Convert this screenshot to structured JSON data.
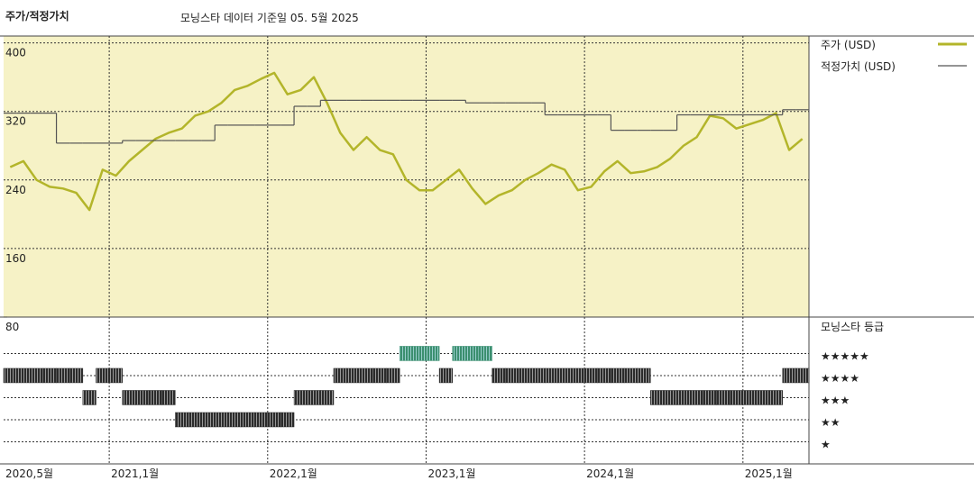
{
  "chart_data": {
    "type": "line",
    "title": "주가/적정가치",
    "subtitle": "모닝스타 데이터 기준일 05. 5월 2025",
    "x": [
      "2020-05",
      "2020-06",
      "2020-07",
      "2020-08",
      "2020-09",
      "2020-10",
      "2020-11",
      "2020-12",
      "2021-01",
      "2021-02",
      "2021-03",
      "2021-04",
      "2021-05",
      "2021-06",
      "2021-07",
      "2021-08",
      "2021-09",
      "2021-10",
      "2021-11",
      "2021-12",
      "2022-01",
      "2022-02",
      "2022-03",
      "2022-04",
      "2022-05",
      "2022-06",
      "2022-07",
      "2022-08",
      "2022-09",
      "2022-10",
      "2022-11",
      "2022-12",
      "2023-01",
      "2023-02",
      "2023-03",
      "2023-04",
      "2023-05",
      "2023-06",
      "2023-07",
      "2023-08",
      "2023-09",
      "2023-10",
      "2023-11",
      "2023-12",
      "2024-01",
      "2024-02",
      "2024-03",
      "2024-04",
      "2024-05",
      "2024-06",
      "2024-07",
      "2024-08",
      "2024-09",
      "2024-10",
      "2024-11",
      "2024-12",
      "2025-01",
      "2025-02",
      "2025-03",
      "2025-04",
      "2025-05"
    ],
    "xlim": [
      "2020-05",
      "2025-06"
    ],
    "xticks": [
      {
        "value": "2020-05",
        "label": "2020,5월"
      },
      {
        "value": "2021-01",
        "label": "2021,1월"
      },
      {
        "value": "2022-01",
        "label": "2022,1월"
      },
      {
        "value": "2023-01",
        "label": "2023,1월"
      },
      {
        "value": "2024-01",
        "label": "2024,1월"
      },
      {
        "value": "2025-01",
        "label": "2025,1월"
      }
    ],
    "ylim": [
      80,
      408
    ],
    "yticks": [
      80,
      160,
      240,
      320,
      400
    ],
    "grid": true,
    "series": [
      {
        "name": "주가 (USD)",
        "color": "#b3b52a",
        "values": [
          255,
          262,
          240,
          232,
          230,
          225,
          205,
          252,
          245,
          262,
          275,
          288,
          295,
          300,
          315,
          320,
          330,
          345,
          350,
          358,
          365,
          340,
          345,
          360,
          330,
          295,
          275,
          290,
          275,
          270,
          240,
          228,
          228,
          240,
          252,
          230,
          212,
          222,
          228,
          240,
          248,
          258,
          252,
          228,
          232,
          250,
          262,
          248,
          250,
          255,
          265,
          280,
          290,
          315,
          312,
          300,
          305,
          310,
          318,
          275,
          288
        ]
      },
      {
        "name": "적정가치 (USD)",
        "color": "#555555",
        "values": [
          318,
          318,
          318,
          318,
          283,
          283,
          283,
          283,
          283,
          286,
          286,
          286,
          286,
          286,
          286,
          286,
          304,
          304,
          304,
          304,
          304,
          304,
          326,
          326,
          333,
          333,
          333,
          333,
          333,
          333,
          333,
          333,
          333,
          333,
          333,
          330,
          330,
          330,
          330,
          330,
          330,
          316,
          316,
          316,
          316,
          316,
          298,
          298,
          298,
          298,
          298,
          316,
          316,
          316,
          316,
          316,
          316,
          316,
          316,
          322,
          322
        ]
      }
    ],
    "ratings": {
      "title": "모닝스타 등급",
      "color": "#2b2b2b",
      "highlight_color": "#3b8f6f",
      "lim": [
        0,
        6.65
      ],
      "ticks": [
        1,
        2,
        3,
        4,
        5
      ],
      "labels": [
        "★",
        "★★",
        "★★★",
        "★★★★",
        "★★★★★"
      ],
      "values": [
        4,
        4,
        4,
        4,
        4,
        4,
        3,
        4,
        4,
        3,
        3,
        3,
        3,
        2,
        2,
        2,
        2,
        2,
        2,
        2,
        2,
        2,
        3,
        3,
        3,
        4,
        4,
        4,
        4,
        4,
        5,
        5,
        5,
        4,
        5,
        5,
        5,
        4,
        4,
        4,
        4,
        4,
        4,
        4,
        4,
        4,
        4,
        4,
        4,
        3,
        3,
        3,
        3,
        3,
        3,
        3,
        3,
        3,
        3,
        4,
        4
      ]
    }
  }
}
